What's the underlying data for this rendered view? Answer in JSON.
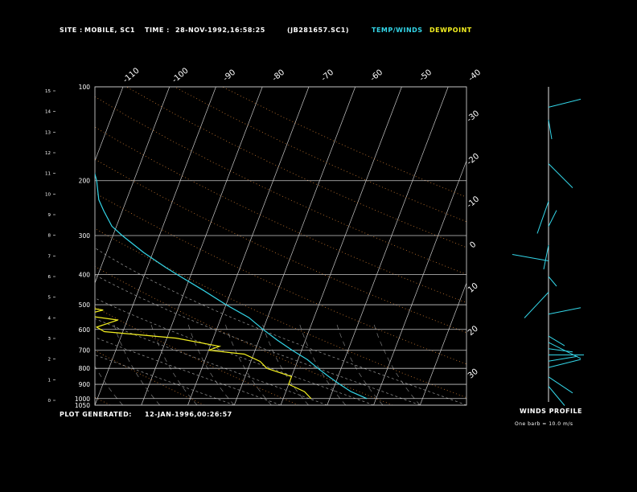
{
  "header": {
    "site_label": "SITE :",
    "site_value": "MOBILE, SC1",
    "time_label": "TIME :",
    "time_value": "28-NOV-1992,16:58:25",
    "file_id": "(JB281657.SC1)",
    "legend_temp": "TEMP/WINDS",
    "legend_dew": "DEWPOINT"
  },
  "footer": {
    "plot_generated_label": "PLOT GENERATED:",
    "plot_generated_value": "12-JAN-1996,00:26:57",
    "winds_profile_title": "WINDS PROFILE",
    "winds_profile_note": "One barb = 10.0 m/s"
  },
  "colors": {
    "temp": "#33d6e8",
    "dew": "#f4f020",
    "background": "#000000",
    "grid": "#c8c8c8"
  },
  "chart_data": {
    "type": "line",
    "pressure_axis_ticks": [
      "100",
      "200",
      "300",
      "400",
      "500",
      "600",
      "700",
      "800",
      "900",
      "1000",
      "1050"
    ],
    "pressure_ticks_hpa": [
      100,
      200,
      300,
      400,
      500,
      600,
      700,
      800,
      900,
      1000,
      1050
    ],
    "height_axis_ticks": [
      "0",
      "1",
      "2",
      "3",
      "4",
      "5",
      "6",
      "7",
      "8",
      "9",
      "10",
      "11",
      "12",
      "13",
      "14",
      "15"
    ],
    "isotherm_labels_top": [
      "-110",
      "-100",
      "-90",
      "-80",
      "-70",
      "-60",
      "-50",
      "-40"
    ],
    "isotherm_labels_right": [
      "-30",
      "-20",
      "-10",
      "0",
      "10",
      "20",
      "30"
    ],
    "series": [
      {
        "name": "TEMP/WINDS",
        "points": [
          [
            100,
            -69
          ],
          [
            120,
            -66
          ],
          [
            150,
            -63
          ],
          [
            180,
            -60
          ],
          [
            200,
            -58
          ],
          [
            230,
            -56
          ],
          [
            250,
            -54
          ],
          [
            280,
            -51
          ],
          [
            300,
            -48
          ],
          [
            340,
            -42
          ],
          [
            380,
            -36
          ],
          [
            400,
            -33
          ],
          [
            450,
            -26
          ],
          [
            500,
            -20
          ],
          [
            550,
            -14
          ],
          [
            600,
            -10
          ],
          [
            650,
            -6
          ],
          [
            700,
            -2
          ],
          [
            750,
            2
          ],
          [
            800,
            5
          ],
          [
            850,
            8
          ],
          [
            900,
            11
          ],
          [
            950,
            14
          ],
          [
            1000,
            18
          ]
        ]
      },
      {
        "name": "DEWPOINT",
        "points": [
          [
            100,
            -75
          ],
          [
            120,
            -78
          ],
          [
            150,
            -81
          ],
          [
            180,
            -80
          ],
          [
            200,
            -76
          ],
          [
            230,
            -72
          ],
          [
            250,
            -71
          ],
          [
            270,
            -72
          ],
          [
            300,
            -74
          ],
          [
            320,
            -66
          ],
          [
            340,
            -74
          ],
          [
            360,
            -65
          ],
          [
            380,
            -69
          ],
          [
            400,
            -72
          ],
          [
            430,
            -62
          ],
          [
            460,
            -64
          ],
          [
            500,
            -54
          ],
          [
            520,
            -46
          ],
          [
            540,
            -50
          ],
          [
            560,
            -42
          ],
          [
            590,
            -46
          ],
          [
            610,
            -44
          ],
          [
            640,
            -28
          ],
          [
            680,
            -18
          ],
          [
            700,
            -20
          ],
          [
            720,
            -12
          ],
          [
            760,
            -8
          ],
          [
            800,
            -6
          ],
          [
            850,
            0
          ],
          [
            900,
            0
          ],
          [
            950,
            4
          ],
          [
            1000,
            6
          ]
        ]
      }
    ],
    "winds": [
      {
        "y": 0.06,
        "dx": 40,
        "dy": -10
      },
      {
        "y": 0.1,
        "dx": 4,
        "dy": 24
      },
      {
        "y": 0.24,
        "dx": 30,
        "dy": 30
      },
      {
        "y": 0.36,
        "dx": -14,
        "dy": 40
      },
      {
        "y": 0.44,
        "dx": 10,
        "dy": -20
      },
      {
        "y": 0.5,
        "dx": -6,
        "dy": 30
      },
      {
        "y": 0.55,
        "dx": -45,
        "dy": -8
      },
      {
        "y": 0.6,
        "dx": 10,
        "dy": 12
      },
      {
        "y": 0.65,
        "dx": -30,
        "dy": 32
      },
      {
        "y": 0.72,
        "dx": 40,
        "dy": -8
      },
      {
        "y": 0.79,
        "dx": 20,
        "dy": 12
      },
      {
        "y": 0.81,
        "dx": 40,
        "dy": 20
      },
      {
        "y": 0.83,
        "dx": 30,
        "dy": 4
      },
      {
        "y": 0.85,
        "dx": 44,
        "dy": 0
      },
      {
        "y": 0.87,
        "dx": 36,
        "dy": -6
      },
      {
        "y": 0.89,
        "dx": 40,
        "dy": -10
      },
      {
        "y": 0.92,
        "dx": 30,
        "dy": 20
      },
      {
        "y": 0.95,
        "dx": 20,
        "dy": 24
      }
    ]
  }
}
